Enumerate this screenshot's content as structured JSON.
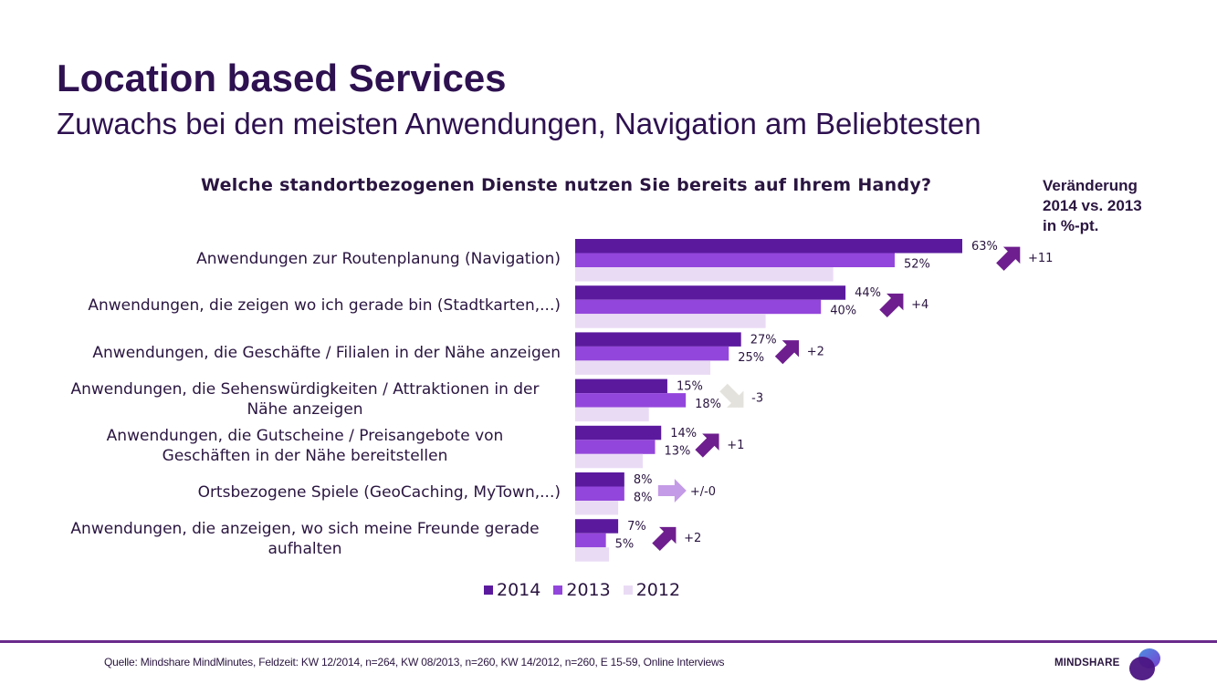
{
  "header": {
    "title": "Location based Services",
    "subtitle": "Zuwachs bei den meisten Anwendungen, Navigation am Beliebtesten"
  },
  "change_header": {
    "line1": "Veränderung",
    "line2": "2014 vs. 2013",
    "line3": "in %-pt."
  },
  "colors": {
    "y2014": "#5b1a9e",
    "y2013": "#9346db",
    "y2012": "#eadbf5",
    "arrow_up": "#6e1e8e",
    "arrow_down": "#e4e2dc",
    "arrow_flat": "#c49be6",
    "text": "#2a1540"
  },
  "chart_data": {
    "type": "bar",
    "orientation": "horizontal",
    "title": "Welche standortbezogenen Dienste nutzen Sie bereits auf Ihrem Handy?",
    "xlabel": "",
    "ylabel": "",
    "xlim": [
      0,
      70
    ],
    "grid": false,
    "legend_position": "bottom",
    "categories": [
      [
        "Anwendungen zur Routenplanung (Navigation)"
      ],
      [
        "Anwendungen, die zeigen wo ich gerade bin (Stadtkarten,...)"
      ],
      [
        "Anwendungen, die Geschäfte / Filialen in der Nähe anzeigen"
      ],
      [
        "Anwendungen, die Sehenswürdigkeiten / Attraktionen in der",
        "Nähe anzeigen"
      ],
      [
        "Anwendungen, die Gutscheine / Preisangebote von",
        "Geschäften in der Nähe bereitstellen"
      ],
      [
        "Ortsbezogene Spiele (GeoCaching, MyTown,...)"
      ],
      [
        "Anwendungen, die anzeigen, wo sich meine Freunde gerade",
        "aufhalten"
      ]
    ],
    "series": [
      {
        "name": "2014",
        "values": [
          63,
          44,
          27,
          15,
          14,
          8,
          7
        ],
        "labels": [
          "63%",
          "44%",
          "27%",
          "15%",
          "14%",
          "8%",
          "7%"
        ]
      },
      {
        "name": "2013",
        "values": [
          52,
          40,
          25,
          18,
          13,
          8,
          5
        ],
        "labels": [
          "52%",
          "40%",
          "25%",
          "18%",
          "13%",
          "8%",
          "5%"
        ]
      },
      {
        "name": "2012",
        "values": [
          42,
          31,
          22,
          12,
          11,
          7,
          5.5
        ],
        "labels": []
      }
    ],
    "changes": [
      {
        "label": "+11",
        "direction": "up"
      },
      {
        "label": "+4",
        "direction": "up"
      },
      {
        "label": "+2",
        "direction": "up"
      },
      {
        "label": "-3",
        "direction": "down"
      },
      {
        "label": "+1",
        "direction": "up"
      },
      {
        "label": "+/-0",
        "direction": "flat"
      },
      {
        "label": "+2",
        "direction": "up"
      }
    ]
  },
  "legend": [
    {
      "label": "2014"
    },
    {
      "label": "2013"
    },
    {
      "label": "2012"
    }
  ],
  "footer": {
    "source": "Quelle: Mindshare MindMinutes, Feldzeit: KW 12/2014, n=264, KW 08/2013, n=260, KW 14/2012, n=260, E 15-59, Online Interviews",
    "logo_text": "MINDSHARE"
  }
}
